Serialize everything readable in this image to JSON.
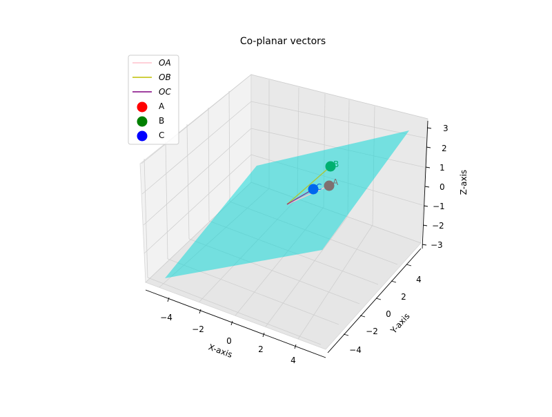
{
  "chart_data": {
    "type": "scatter",
    "subtype": "3d-plane-with-vectors",
    "title": "Co-planar vectors",
    "xlabel": "X-axis",
    "ylabel": "Y-axis",
    "zlabel": "Z-axis",
    "xlim": [
      -5,
      5
    ],
    "ylim": [
      -5,
      5
    ],
    "zlim": [
      -3.3,
      3.3
    ],
    "x_ticks": [
      "−4",
      "−2",
      "0",
      "2",
      "4"
    ],
    "y_ticks": [
      "−4",
      "−2",
      "0",
      "2",
      "4"
    ],
    "z_ticks": [
      "−3",
      "−2",
      "−1",
      "0",
      "1",
      "2",
      "3"
    ],
    "grid": true,
    "legend_position": "top-left",
    "plane": {
      "color": "#00d8d8"
    },
    "vectors": [
      {
        "name": "OA",
        "color": "#ffc0cb"
      },
      {
        "name": "OB",
        "color": "#bfbf00"
      },
      {
        "name": "OC",
        "color": "#800080"
      }
    ],
    "points": [
      {
        "name": "A",
        "color": "#ff0000",
        "label": "A"
      },
      {
        "name": "B",
        "color": "#008000",
        "label": "B"
      },
      {
        "name": "C",
        "color": "#0000ff",
        "label": "C"
      }
    ]
  }
}
